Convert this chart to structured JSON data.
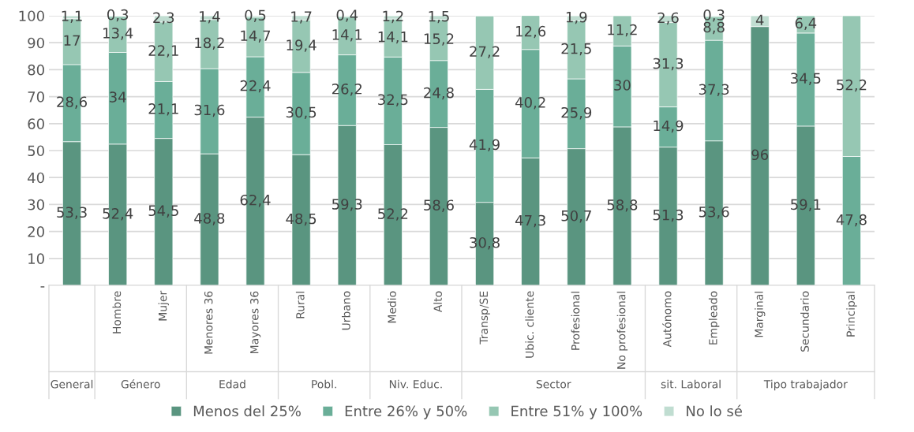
{
  "chart_data": {
    "type": "bar",
    "stacked": true,
    "categories": [
      null,
      "Hombre",
      "Mujer",
      "Menores 36",
      "Mayores 36",
      "Rural",
      "Urbano",
      "Medio",
      "Alto",
      "Transp/SE",
      "Ubic. cliente",
      "Profesional",
      "No profesional",
      "Autónomo",
      "Empleado",
      "Marginal",
      "Secundario",
      "Principal"
    ],
    "annotations": [
      "General",
      "Género",
      "Edad",
      "Pobl.",
      "Niv. Educ.",
      "Sector",
      "sit. Laboral",
      "Tipo trabajador"
    ],
    "series": [
      {
        "name": "Menos del 25%",
        "color": "#5a9580",
        "values": [
          53.3,
          52.4,
          54.5,
          48.8,
          62.4,
          48.5,
          59.3,
          52.2,
          58.6,
          30.8,
          47.3,
          50.7,
          58.8,
          51.3,
          53.6,
          96,
          59.1,
          null
        ],
        "value_labels": [
          "53,3",
          "52,4",
          "54,5",
          "48,8",
          "62,4",
          "48,5",
          "59,3",
          "52,2",
          "58,6",
          "30,8",
          "47,3",
          "50,7",
          "58,8",
          "51,3",
          "53,6",
          "96",
          "59,1",
          null
        ]
      },
      {
        "name": "Entre 26% y 50%",
        "color": "#6aae98",
        "values": [
          28.6,
          34,
          21.1,
          31.6,
          22.4,
          30.5,
          26.2,
          32.5,
          24.8,
          41.9,
          40.2,
          25.9,
          30,
          14.9,
          37.3,
          null,
          34.5,
          47.8
        ],
        "value_labels": [
          "28,6",
          "34",
          "21,1",
          "31,6",
          "22,4",
          "30,5",
          "26,2",
          "32,5",
          "24,8",
          "41,9",
          "40,2",
          "25,9",
          "30",
          "14,9",
          "37,3",
          null,
          "34,5",
          "47,8"
        ]
      },
      {
        "name": "Entre 51% y 100%",
        "color": "#96c7b3",
        "values": [
          17,
          13.4,
          22.1,
          18.2,
          14.7,
          19.4,
          14.1,
          14.1,
          15.2,
          27.2,
          12.6,
          21.5,
          11.2,
          31.3,
          8.8,
          null,
          6.4,
          52.2
        ],
        "value_labels": [
          "17",
          "13,4",
          "22,1",
          "18,2",
          "14,7",
          "19,4",
          "14,1",
          "14,1",
          "15,2",
          "27,2",
          "12,6",
          "21,5",
          "11,2",
          "31,3",
          "8,8",
          null,
          "6,4",
          "52,2"
        ]
      },
      {
        "name": "No lo sé",
        "color": "#c0ddd1",
        "values": [
          1.1,
          0.3,
          2.3,
          1.4,
          0.5,
          1.7,
          0.4,
          1.2,
          1.5,
          null,
          null,
          1.9,
          null,
          2.6,
          0.3,
          4,
          null,
          null
        ],
        "value_labels": [
          "1,1",
          "0,3",
          "2,3",
          "1,4",
          "0,5",
          "1,7",
          "0,4",
          "1,2",
          "1,5",
          null,
          null,
          "1,9",
          null,
          "2,6",
          "0,3",
          "4",
          null,
          null
        ]
      }
    ],
    "ylim": [
      0,
      100
    ],
    "yticks": [
      {
        "value": 0,
        "label": "-"
      },
      10,
      20,
      30,
      40,
      50,
      60,
      70,
      80,
      90,
      100
    ],
    "grid": "y",
    "legend": "bottom"
  }
}
